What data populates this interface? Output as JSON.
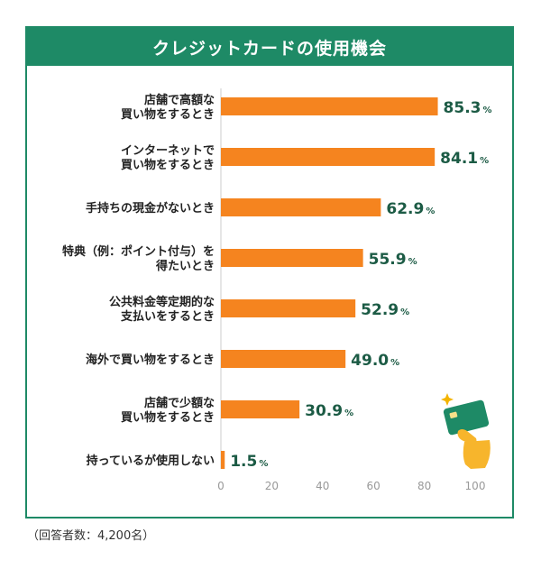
{
  "title": "クレジットカードの使用機会",
  "footnote": "（回答者数：4,200名）",
  "colors": {
    "accent": "#1e8a66",
    "bar": "#f5841f",
    "value": "#1c5b45",
    "axis": "#999999"
  },
  "icon": "credit-card-hand-icon",
  "chart_data": {
    "type": "bar",
    "orientation": "horizontal",
    "title": "クレジットカードの使用機会",
    "categories": [
      [
        "店舗で高額な",
        "買い物をするとき"
      ],
      [
        "インターネットで",
        "買い物をするとき"
      ],
      [
        "手持ちの現金がないとき"
      ],
      [
        "特典（例：ポイント付与）を",
        "得たいとき"
      ],
      [
        "公共料金等定期的な",
        "支払いをするとき"
      ],
      [
        "海外で買い物をするとき"
      ],
      [
        "店舗で少額な",
        "買い物をするとき"
      ],
      [
        "持っているが使用しない"
      ]
    ],
    "values": [
      85.3,
      84.1,
      62.9,
      55.9,
      52.9,
      49.0,
      30.9,
      1.5
    ],
    "value_labels": [
      "85.3",
      "84.1",
      "62.9",
      "55.9",
      "52.9",
      "49.0",
      "30.9",
      "1.5"
    ],
    "unit": "%",
    "xlim": [
      0,
      100
    ],
    "xticks": [
      "0",
      "20",
      "40",
      "60",
      "80",
      "100"
    ],
    "grid": false,
    "legend": "none"
  }
}
